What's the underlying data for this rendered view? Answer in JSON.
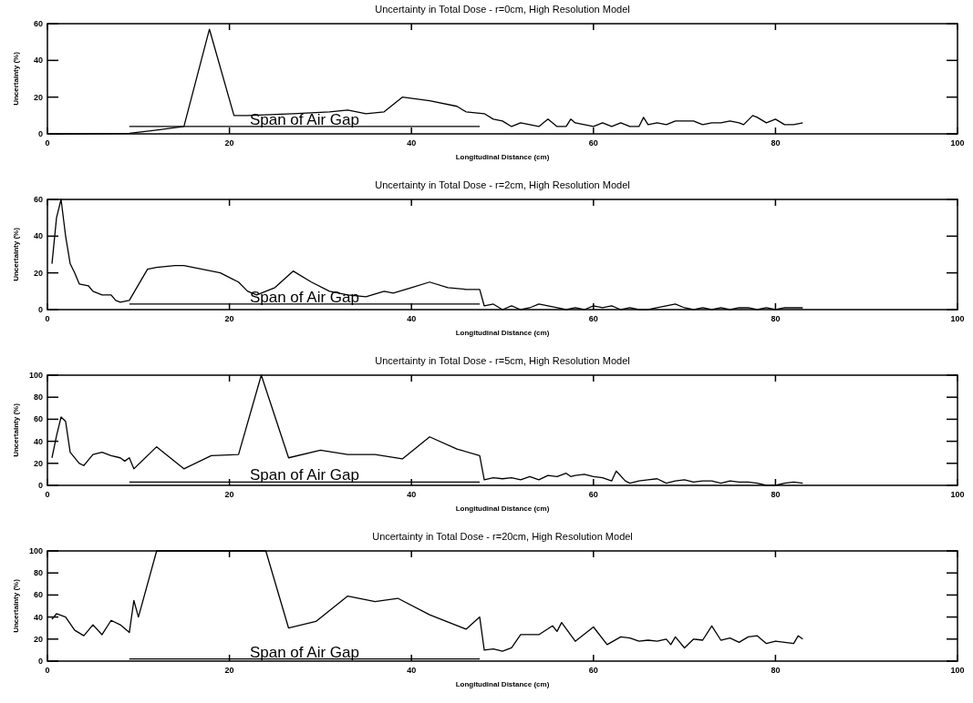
{
  "chart_data": [
    {
      "type": "line",
      "title": "Uncertainty in Total Dose - r=0cm, High Resolution Model",
      "xlabel": "Longitudinal Distance (cm)",
      "ylabel": "Uncertainty (%)",
      "xlim": [
        0,
        100
      ],
      "xticks": [
        0,
        20,
        40,
        60,
        80,
        100
      ],
      "ylim": [
        0,
        60
      ],
      "yticks": [
        0,
        20,
        40,
        60
      ],
      "grid": false,
      "series": [
        {
          "color": "#000000",
          "x": [
            1,
            9,
            12,
            15,
            17.8,
            20.5,
            22,
            27,
            31,
            33,
            35,
            37,
            39,
            42,
            45,
            46,
            48,
            49,
            50,
            51,
            52,
            53,
            54,
            55,
            56,
            57,
            57.5,
            58,
            59,
            60,
            61,
            62,
            63,
            64,
            65,
            65.5,
            66,
            67,
            68,
            69,
            70,
            71,
            72,
            73,
            74,
            75,
            76,
            76.5,
            77.5,
            78,
            79,
            80,
            81,
            82,
            83
          ],
          "values": [
            0,
            0.3,
            2,
            4,
            57,
            10,
            10,
            11,
            12,
            13,
            11,
            12,
            20,
            18,
            15,
            12,
            11,
            8,
            7,
            4,
            6,
            5,
            4,
            8,
            4,
            4,
            8,
            6,
            5,
            4,
            6,
            4,
            6,
            4,
            4,
            9,
            5,
            6,
            5,
            7,
            7,
            7,
            5,
            6,
            6,
            7,
            6,
            5,
            10,
            9,
            6,
            8,
            5,
            5,
            6
          ]
        },
        {
          "name": "Span of Air Gap",
          "color": "#000000",
          "x": [
            9,
            47.5
          ],
          "values": [
            4,
            4
          ]
        }
      ]
    },
    {
      "type": "line",
      "title": "Uncertainty in Total Dose - r=2cm, High Resolution Model",
      "xlabel": "Longitudinal Distance (cm)",
      "ylabel": "Uncertainty (%)",
      "xlim": [
        0,
        100
      ],
      "xticks": [
        0,
        20,
        40,
        60,
        80,
        100
      ],
      "ylim": [
        0,
        60
      ],
      "yticks": [
        0,
        20,
        40,
        60
      ],
      "grid": false,
      "series": [
        {
          "color": "#000000",
          "x": [
            0.5,
            1,
            1.5,
            2,
            2.5,
            3,
            3.5,
            4.5,
            5,
            6,
            7,
            7.5,
            8,
            9,
            11,
            12,
            14,
            15,
            17,
            19,
            21,
            22,
            23,
            25,
            27,
            29,
            31,
            33,
            35,
            37,
            38,
            40,
            42,
            44,
            46,
            47.5,
            48,
            49,
            50,
            51,
            52,
            53,
            54,
            55,
            56,
            57,
            58,
            59,
            60,
            61,
            62,
            63,
            64,
            65,
            66,
            67,
            68,
            69,
            70,
            71,
            72,
            73,
            74,
            75,
            76,
            77,
            78,
            79,
            80,
            81,
            83
          ],
          "values": [
            25,
            50,
            60,
            40,
            25,
            20,
            14,
            13,
            10,
            8,
            8,
            5,
            4,
            5,
            22,
            23,
            24,
            24,
            22,
            20,
            15,
            10,
            8,
            12,
            21,
            15,
            10,
            8,
            7,
            10,
            9,
            12,
            15,
            12,
            11,
            11,
            2,
            3,
            0,
            2,
            0,
            1,
            3,
            2,
            1,
            0,
            1,
            0,
            2,
            1,
            2,
            0,
            1,
            0,
            0,
            1,
            2,
            3,
            1,
            0,
            1,
            0,
            1,
            0,
            1,
            1,
            0,
            1,
            0,
            1,
            1
          ]
        },
        {
          "name": "Span of Air Gap",
          "color": "#000000",
          "x": [
            9,
            47.5
          ],
          "values": [
            3,
            3
          ]
        }
      ]
    },
    {
      "type": "line",
      "title": "Uncertainty in Total Dose - r=5cm, High Resolution Model",
      "xlabel": "Longitudinal Distance (cm)",
      "ylabel": "Uncertainty (%)",
      "xlim": [
        0,
        100
      ],
      "xticks": [
        0,
        20,
        40,
        60,
        80,
        100
      ],
      "ylim": [
        0,
        100
      ],
      "yticks": [
        0,
        20,
        40,
        60,
        80,
        100
      ],
      "grid": false,
      "series": [
        {
          "color": "#000000",
          "x": [
            0.5,
            1,
            1.5,
            2,
            2.5,
            3.5,
            4,
            5,
            6,
            7,
            8,
            8.5,
            9,
            9.5,
            12,
            15,
            18,
            21,
            23.5,
            26.5,
            30,
            33,
            36,
            39,
            42,
            45,
            47.5,
            48,
            49,
            50,
            51,
            52,
            53,
            54,
            55,
            56,
            57,
            57.5,
            58,
            59,
            60,
            61,
            62,
            62.5,
            63.5,
            64,
            65,
            66,
            67,
            68,
            69,
            70,
            71,
            72,
            73,
            74,
            75,
            76,
            77,
            78,
            79,
            80,
            81,
            82,
            83
          ],
          "values": [
            25,
            45,
            62,
            58,
            30,
            20,
            18,
            28,
            30,
            27,
            25,
            22,
            25,
            15,
            35,
            15,
            27,
            28,
            100,
            25,
            32,
            28,
            28,
            24,
            44,
            33,
            27,
            5,
            7,
            6,
            7,
            5,
            8,
            5,
            9,
            8,
            11,
            8,
            9,
            10,
            8,
            7,
            4,
            13,
            4,
            2,
            4,
            5,
            6,
            2,
            4,
            5,
            3,
            4,
            4,
            2,
            4,
            3,
            3,
            2,
            0,
            0,
            2,
            3,
            2
          ]
        },
        {
          "name": "Span of Air Gap",
          "color": "#000000",
          "x": [
            9,
            47.5
          ],
          "values": [
            3,
            3
          ]
        }
      ]
    },
    {
      "type": "line",
      "title": "Uncertainty in Total Dose - r=20cm, High Resolution Model",
      "xlabel": "Longitudinal Distance (cm)",
      "ylabel": "Uncertainty (%)",
      "xlim": [
        0,
        100
      ],
      "xticks": [
        0,
        20,
        40,
        60,
        80,
        100
      ],
      "ylim": [
        0,
        100
      ],
      "yticks": [
        0,
        20,
        40,
        60,
        80,
        100
      ],
      "grid": false,
      "series": [
        {
          "color": "#000000",
          "x": [
            0.5,
            1,
            2,
            3,
            4,
            5,
            6,
            7,
            8,
            9,
            9.5,
            10,
            12,
            24,
            26.5,
            29.5,
            33,
            36,
            38.5,
            42,
            46,
            47.5,
            48,
            49,
            50,
            51,
            52,
            54,
            55.5,
            56,
            56.5,
            58,
            60,
            61.5,
            63,
            64,
            65,
            66,
            67,
            68,
            68.5,
            69,
            70,
            71,
            72,
            73,
            74,
            75,
            76,
            77,
            78,
            79,
            80,
            81,
            82,
            82.5,
            83
          ],
          "values": [
            38,
            43,
            40,
            28,
            23,
            33,
            24,
            37,
            33,
            26,
            55,
            40,
            100,
            100,
            30,
            36,
            59,
            54,
            57,
            42,
            29,
            40,
            10,
            11,
            9,
            12,
            24,
            24,
            32,
            27,
            35,
            18,
            31,
            15,
            22,
            21,
            18,
            19,
            18,
            20,
            15,
            22,
            12,
            20,
            19,
            32,
            19,
            21,
            17,
            22,
            23,
            16,
            18,
            17,
            16,
            23,
            20
          ]
        },
        {
          "name": "Span of Air Gap",
          "color": "#000000",
          "x": [
            9,
            47.5
          ],
          "values": [
            2,
            2
          ]
        }
      ]
    }
  ]
}
